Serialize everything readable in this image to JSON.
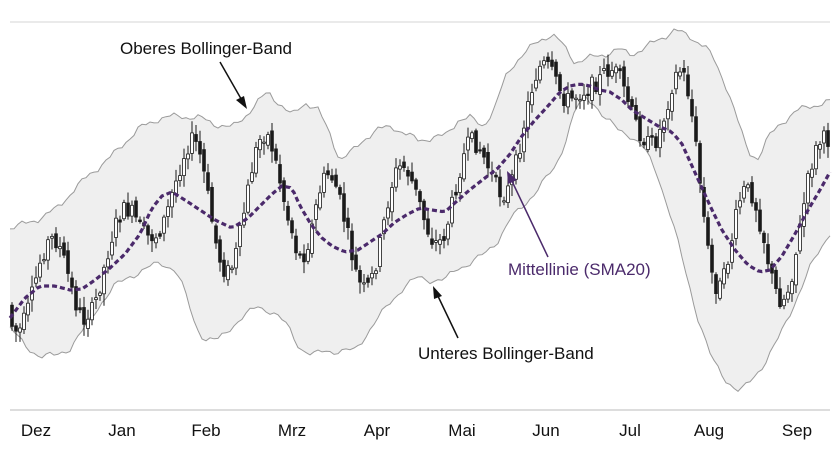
{
  "chart_data": {
    "type": "line",
    "title": "",
    "xlabel": "",
    "ylabel": "",
    "x_ticks": [
      "Dez",
      "Jan",
      "Feb",
      "Mrz",
      "Apr",
      "Mai",
      "Jun",
      "Jul",
      "Aug",
      "Sep"
    ],
    "y_axis_shown": false,
    "grid": false,
    "series": [
      {
        "name": "Oberes Bollinger-Band",
        "role": "upper_band"
      },
      {
        "name": "Mittellinie (SMA20)",
        "role": "middle_band",
        "style": "dashed"
      },
      {
        "name": "Unteres Bollinger-Band",
        "role": "lower_band"
      }
    ],
    "colors": {
      "band_fill": "#efefef",
      "band_line": "#9a9a9a",
      "candles": "#1a1a1a",
      "sma": "#4b2a6b",
      "annotation_text": "#111111",
      "sma_annotation_text": "#4b2a6b",
      "axis": "#bbbbbb"
    }
  },
  "annotations": {
    "upper": "Oberes Bollinger-Band",
    "middle": "Mittellinie (SMA20)",
    "lower": "Unteres Bollinger-Band"
  }
}
